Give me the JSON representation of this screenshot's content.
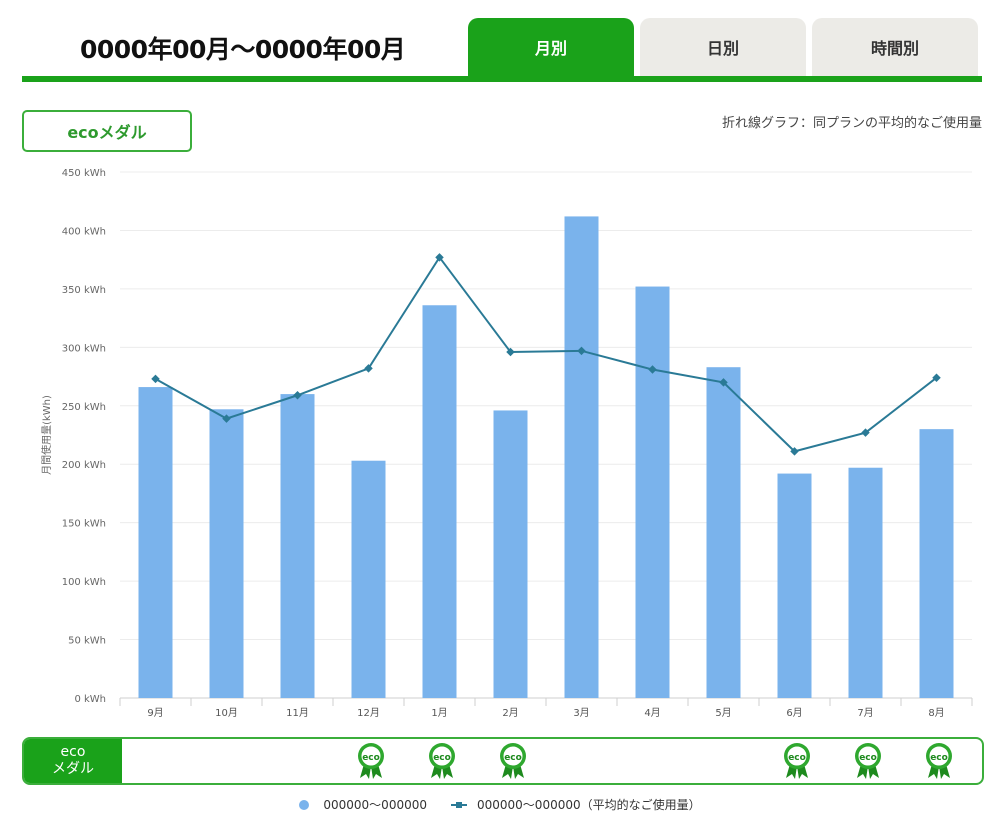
{
  "header": {
    "period": "0000年00月〜0000年00月",
    "tabs": [
      {
        "label": "月別",
        "active": true
      },
      {
        "label": "日別",
        "active": false
      },
      {
        "label": "時間別",
        "active": false
      }
    ]
  },
  "eco_button_label": "ecoメダル",
  "chart_note": "折れ線グラフ：同プランの平均的なご使用量",
  "medal_bar": {
    "label_top": "eco",
    "label_bottom": "メダル",
    "medal_text": "eco"
  },
  "colors": {
    "accent": "#1aa21a",
    "bar": "#7ab3ec",
    "line": "#2a7a96"
  },
  "chart_data": {
    "type": "bar",
    "categories": [
      "9月",
      "10月",
      "11月",
      "12月",
      "1月",
      "2月",
      "3月",
      "4月",
      "5月",
      "6月",
      "7月",
      "8月"
    ],
    "series": [
      {
        "name": "000000〜000000",
        "type": "bar",
        "values": [
          266,
          247,
          260,
          203,
          336,
          246,
          412,
          352,
          283,
          192,
          197,
          230
        ]
      },
      {
        "name": "000000〜000000（平均的なご使用量）",
        "type": "line",
        "values": [
          273,
          239,
          259,
          282,
          377,
          296,
          297,
          281,
          270,
          211,
          227,
          274
        ]
      }
    ],
    "eco_medal": [
      false,
      false,
      false,
      true,
      true,
      true,
      false,
      false,
      false,
      true,
      true,
      true
    ],
    "ylabel": "月間使用量(kWh)",
    "yunit": "kWh",
    "ylim": [
      0,
      450
    ],
    "yticks": [
      0,
      50,
      100,
      150,
      200,
      250,
      300,
      350,
      400,
      450
    ],
    "grid": true,
    "legend_position": "bottom"
  }
}
